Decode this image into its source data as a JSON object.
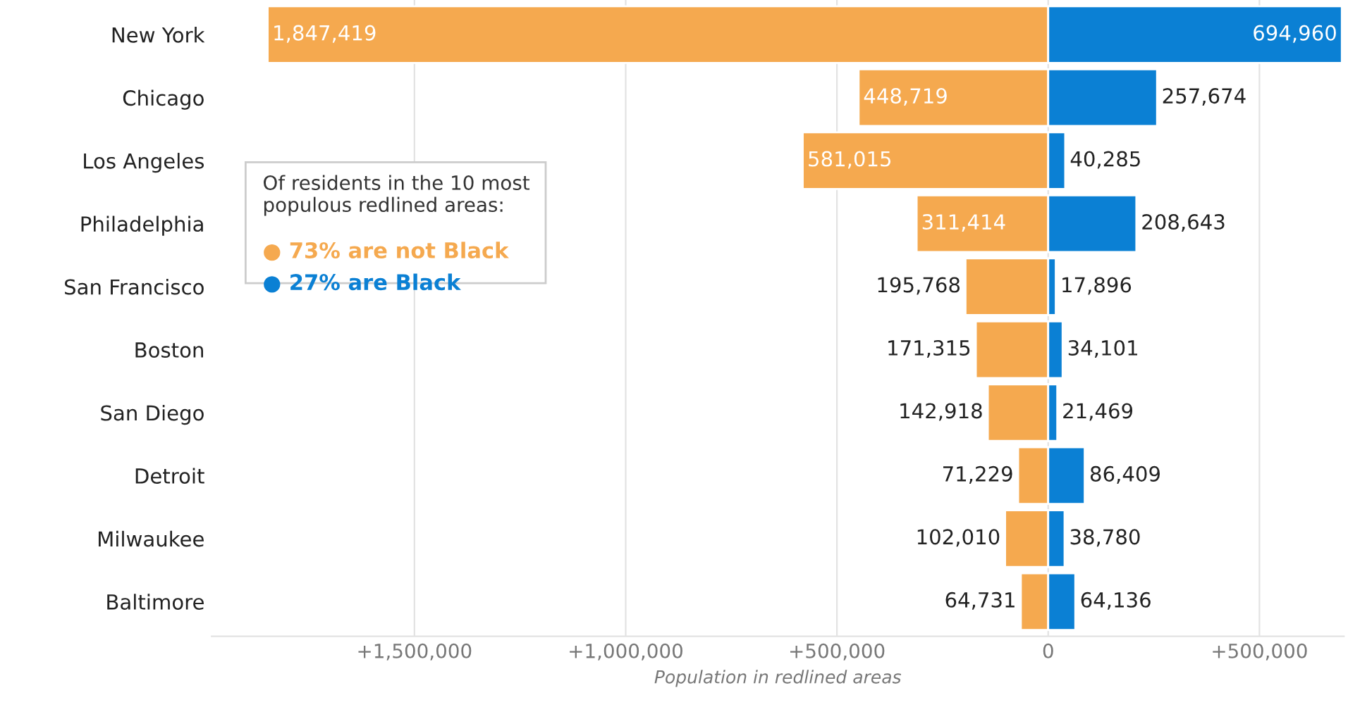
{
  "chart_data": {
    "type": "bar",
    "orientation": "horizontal",
    "categories": [
      "New York",
      "Chicago",
      "Los Angeles",
      "Philadelphia",
      "San Francisco",
      "Boston",
      "San Diego",
      "Detroit",
      "Milwaukee",
      "Baltimore"
    ],
    "series": [
      {
        "color": "#f5a94f",
        "values": [
          1847419,
          448719,
          581015,
          311414,
          195768,
          171315,
          142918,
          71229,
          102010,
          64731
        ],
        "base": [
          -1847419,
          -448719,
          -581015,
          -311414,
          -195768,
          -171315,
          -142918,
          -71229,
          -102010,
          -64731
        ],
        "value_labels": [
          "1,847,419",
          "448,719",
          "581,015",
          "311,414",
          "195,768",
          "171,315",
          "142,918",
          "71,229",
          "102,010",
          "64,731"
        ]
      },
      {
        "color": "#0b80d4",
        "values": [
          694960,
          257674,
          40285,
          208643,
          17896,
          34101,
          21469,
          86409,
          38780,
          64136
        ],
        "value_labels": [
          "694,960",
          "257,674",
          "40,285",
          "208,643",
          "17,896",
          "34,101",
          "21,469",
          "86,409",
          "38,780",
          "64,136"
        ]
      }
    ],
    "xlim": [
      -1980000,
      700000
    ],
    "xticks": [
      {
        "value": -1500000,
        "label": "+1,500,000"
      },
      {
        "value": -1000000,
        "label": "+1,000,000"
      },
      {
        "value": -500000,
        "label": "+500,000"
      },
      0,
      {
        "value": 500000,
        "label": "+500,000"
      }
    ],
    "xlabel": "Population in redlined areas",
    "grid": "x",
    "annotations": [
      "Of residents in the 10 most\npopulous redlined areas:",
      "● 73% are not Black",
      "● 27% are Black"
    ]
  }
}
